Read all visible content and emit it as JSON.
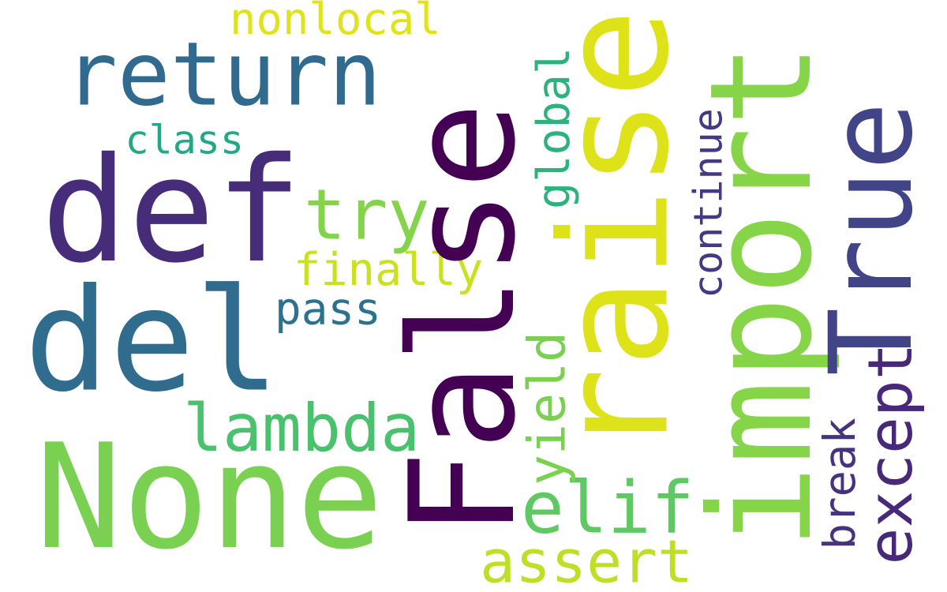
{
  "words": [
    {
      "id": "return",
      "text": "return",
      "color": "#306a8e",
      "vertical": false
    },
    {
      "id": "nonlocal",
      "text": "nonlocal",
      "color": "#dfe318",
      "vertical": false
    },
    {
      "id": "class",
      "text": "class",
      "color": "#22a884",
      "vertical": false
    },
    {
      "id": "def",
      "text": "def",
      "color": "#472c7a",
      "vertical": false
    },
    {
      "id": "try",
      "text": "try",
      "color": "#84d44b",
      "vertical": false
    },
    {
      "id": "del",
      "text": "del",
      "color": "#2f6c8e",
      "vertical": false
    },
    {
      "id": "finally",
      "text": "finally",
      "color": "#cae11f",
      "vertical": false
    },
    {
      "id": "pass",
      "text": "pass",
      "color": "#2c718e",
      "vertical": false
    },
    {
      "id": "lambda",
      "text": "lambda",
      "color": "#4ac16d",
      "vertical": false
    },
    {
      "id": "none",
      "text": "None",
      "color": "#7ad151",
      "vertical": false
    },
    {
      "id": "false",
      "text": "False",
      "color": "#440154",
      "vertical": true
    },
    {
      "id": "elif",
      "text": "elif",
      "color": "#5ec962",
      "vertical": false
    },
    {
      "id": "assert",
      "text": "assert",
      "color": "#bddf26",
      "vertical": false
    },
    {
      "id": "raise",
      "text": "raise",
      "color": "#dde318",
      "vertical": true
    },
    {
      "id": "global",
      "text": "global",
      "color": "#2db27d",
      "vertical": true
    },
    {
      "id": "yield",
      "text": "yield",
      "color": "#7ad151",
      "vertical": true
    },
    {
      "id": "continue",
      "text": "continue",
      "color": "#443983",
      "vertical": true
    },
    {
      "id": "import",
      "text": "import",
      "color": "#86d549",
      "vertical": true
    },
    {
      "id": "true",
      "text": "True",
      "color": "#414487",
      "vertical": true
    },
    {
      "id": "except",
      "text": "except",
      "color": "#482878",
      "vertical": true
    },
    {
      "id": "break",
      "text": "break",
      "color": "#46327e",
      "vertical": true
    }
  ]
}
